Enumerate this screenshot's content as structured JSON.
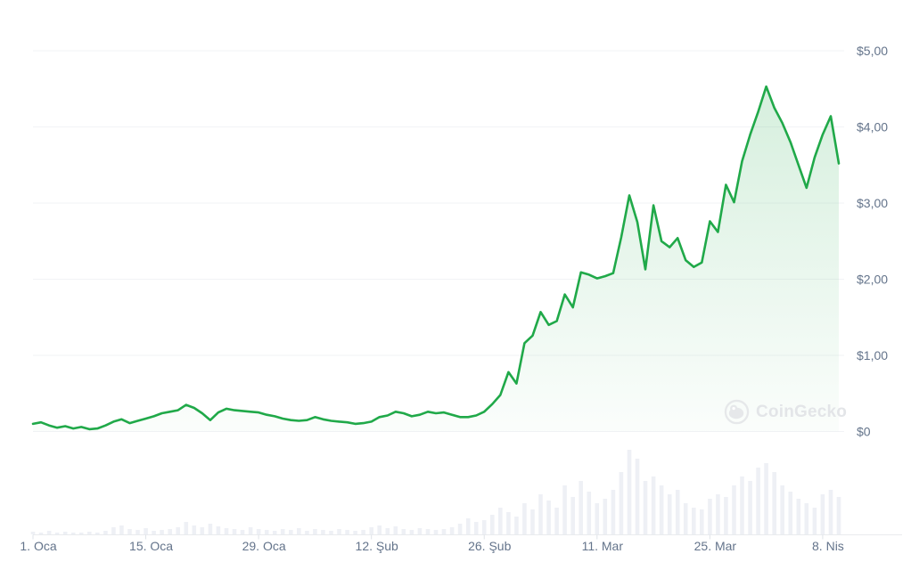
{
  "watermark": {
    "text": "CoinGecko",
    "icon": "coingecko-gecko-icon",
    "color": "#e3e5e8"
  },
  "colors": {
    "line": "#20a949",
    "area_top": "rgba(32,169,73,0.20)",
    "area_bottom": "rgba(32,169,73,0.02)",
    "grid": "#f2f3f6",
    "axis_baseline": "#e9ebee",
    "tick": "#dfe3e8",
    "axis_text": "#64748b",
    "volume_bar": "#eef0f5",
    "background": "#ffffff"
  },
  "chart_data": {
    "type": "line",
    "title": "",
    "source_watermark": "CoinGecko",
    "legend": {
      "visible": false
    },
    "grid": {
      "horizontal": true,
      "vertical": false
    },
    "x": {
      "interval": "daily",
      "tick_labels": [
        "1. Oca",
        "15. Oca",
        "29. Oca",
        "12. Şub",
        "26. Şub",
        "11. Mar",
        "25. Mar",
        "8. Nis"
      ],
      "tick_day_indices": [
        0,
        14,
        28,
        42,
        56,
        70,
        84,
        98
      ]
    },
    "y": {
      "unit": "USD",
      "locale": "tr-TR",
      "tick_labels": [
        "$5,00",
        "$4,00",
        "$3,00",
        "$2,00",
        "$1,00",
        "$0"
      ],
      "tick_values": [
        5,
        4,
        3,
        2,
        1,
        0
      ],
      "range": [
        0,
        5.6
      ]
    },
    "series": [
      {
        "name": "price_usd",
        "type": "line",
        "area_fill": true,
        "values": [
          0.1,
          0.12,
          0.08,
          0.05,
          0.07,
          0.04,
          0.06,
          0.03,
          0.04,
          0.08,
          0.13,
          0.16,
          0.11,
          0.14,
          0.17,
          0.2,
          0.24,
          0.26,
          0.28,
          0.35,
          0.31,
          0.24,
          0.15,
          0.25,
          0.3,
          0.28,
          0.27,
          0.26,
          0.25,
          0.22,
          0.2,
          0.17,
          0.15,
          0.14,
          0.15,
          0.19,
          0.16,
          0.14,
          0.13,
          0.12,
          0.1,
          0.11,
          0.13,
          0.19,
          0.21,
          0.26,
          0.24,
          0.2,
          0.22,
          0.26,
          0.24,
          0.25,
          0.22,
          0.19,
          0.19,
          0.21,
          0.26,
          0.36,
          0.48,
          0.78,
          0.63,
          1.16,
          1.26,
          1.57,
          1.4,
          1.45,
          1.8,
          1.63,
          2.09,
          2.06,
          2.01,
          2.04,
          2.08,
          2.55,
          3.1,
          2.75,
          2.13,
          2.97,
          2.5,
          2.42,
          2.54,
          2.25,
          2.16,
          2.22,
          2.76,
          2.62,
          3.24,
          3.01,
          3.55,
          3.9,
          4.2,
          4.53,
          4.25,
          4.05,
          3.8,
          3.5,
          3.2,
          3.6,
          3.9,
          4.14,
          3.52
        ]
      },
      {
        "name": "volume",
        "type": "bar",
        "values_relative": [
          3,
          2,
          4,
          2,
          3,
          2,
          2,
          3,
          2,
          4,
          8,
          10,
          6,
          5,
          7,
          4,
          5,
          6,
          8,
          14,
          10,
          8,
          12,
          9,
          7,
          6,
          5,
          8,
          6,
          5,
          4,
          6,
          5,
          7,
          4,
          6,
          5,
          4,
          6,
          5,
          4,
          5,
          8,
          10,
          7,
          9,
          6,
          5,
          7,
          6,
          5,
          6,
          8,
          12,
          18,
          14,
          16,
          22,
          30,
          25,
          20,
          35,
          28,
          45,
          38,
          30,
          55,
          42,
          60,
          48,
          35,
          40,
          50,
          70,
          95,
          85,
          60,
          65,
          55,
          45,
          50,
          35,
          30,
          28,
          40,
          45,
          42,
          55,
          65,
          60,
          75,
          80,
          70,
          55,
          48,
          40,
          35,
          30,
          45,
          50,
          42
        ],
        "max_relative": 100
      }
    ]
  }
}
